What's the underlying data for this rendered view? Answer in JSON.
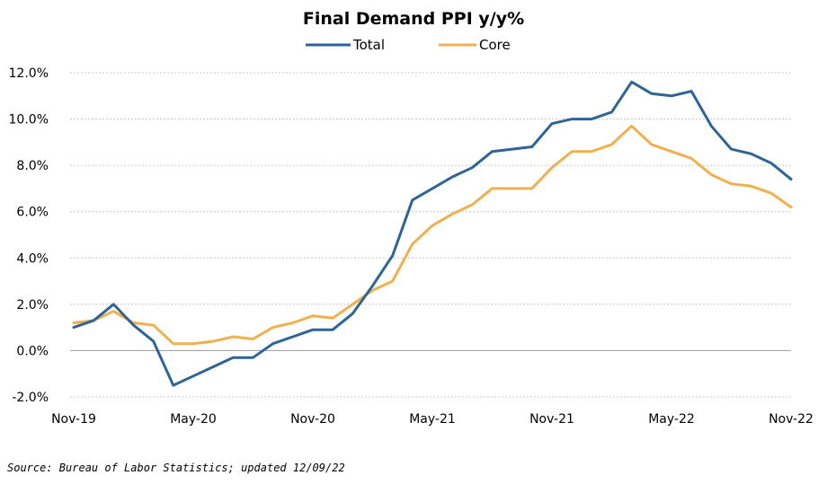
{
  "chart_data": {
    "type": "line",
    "title": "Final Demand PPI y/y%",
    "x": [
      "Nov-19",
      "Dec-19",
      "Jan-20",
      "Feb-20",
      "Mar-20",
      "Apr-20",
      "May-20",
      "Jun-20",
      "Jul-20",
      "Aug-20",
      "Sep-20",
      "Oct-20",
      "Nov-20",
      "Dec-20",
      "Jan-21",
      "Feb-21",
      "Mar-21",
      "Apr-21",
      "May-21",
      "Jun-21",
      "Jul-21",
      "Aug-21",
      "Sep-21",
      "Oct-21",
      "Nov-21",
      "Dec-21",
      "Jan-22",
      "Feb-22",
      "Mar-22",
      "Apr-22",
      "May-22",
      "Jun-22",
      "Jul-22",
      "Aug-22",
      "Sep-22",
      "Oct-22",
      "Nov-22"
    ],
    "x_tick_labels": [
      "Nov-19",
      "May-20",
      "Nov-20",
      "May-21",
      "Nov-21",
      "May-22",
      "Nov-22"
    ],
    "series": [
      {
        "name": "Total",
        "color": "#2e6496",
        "values": [
          1.0,
          1.3,
          2.0,
          1.1,
          0.4,
          -1.5,
          -1.1,
          -0.7,
          -0.3,
          -0.3,
          0.3,
          0.6,
          0.9,
          0.9,
          1.6,
          2.8,
          4.1,
          6.5,
          7.0,
          7.5,
          7.9,
          8.6,
          8.7,
          8.8,
          9.8,
          10.0,
          10.0,
          10.3,
          11.6,
          11.1,
          11.0,
          11.2,
          9.7,
          8.7,
          8.5,
          8.1,
          7.4
        ]
      },
      {
        "name": "Core",
        "color": "#f0b050",
        "values": [
          1.2,
          1.3,
          1.7,
          1.2,
          1.1,
          0.3,
          0.3,
          0.4,
          0.6,
          0.5,
          1.0,
          1.2,
          1.5,
          1.4,
          2.0,
          2.6,
          3.0,
          4.6,
          5.4,
          5.9,
          6.3,
          7.0,
          7.0,
          7.0,
          7.9,
          8.6,
          8.6,
          8.9,
          9.7,
          8.9,
          8.6,
          8.3,
          7.6,
          7.2,
          7.1,
          6.8,
          6.2
        ]
      }
    ],
    "y_tick_labels": [
      "-2.0%",
      "0.0%",
      "2.0%",
      "4.0%",
      "6.0%",
      "8.0%",
      "10.0%",
      "12.0%"
    ],
    "y_tick_values": [
      -2,
      0,
      2,
      4,
      6,
      8,
      10,
      12
    ],
    "ylim": [
      -2,
      12
    ],
    "grid": true,
    "legend_position": "top-center",
    "negative_label_color": "#ff0000",
    "source_note": "Source: Bureau of Labor Statistics; updated 12/09/22"
  }
}
